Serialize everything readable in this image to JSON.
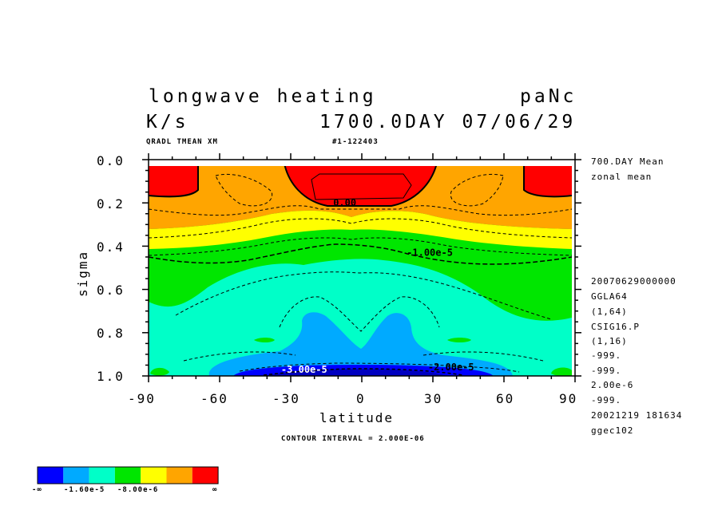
{
  "header": {
    "title": "longwave heating",
    "run": "paNc",
    "units": "K/s",
    "time": "1700.0DAY 07/06/29",
    "var": "QRADL TMEAN XM",
    "id": "#1-122403"
  },
  "side_info": {
    "line1": "700.DAY Mean",
    "line2": "zonal mean",
    "meta": [
      "20070629000000",
      "GGLA64",
      "(1,64)",
      "CSIG16.P",
      "(1,16)",
      "-999.",
      "-999.",
      "2.00e-6",
      "-999.",
      "20021219 181634",
      "ggec102"
    ]
  },
  "footer": {
    "interval": "CONTOUR INTERVAL = 2.000E-06"
  },
  "chart_data": {
    "type": "heatmap",
    "title": "longwave heating",
    "xlabel": "latitude",
    "ylabel": "sigma",
    "xlim": [
      -90,
      90
    ],
    "ylim": [
      1.0,
      0.0
    ],
    "x_ticks": [
      "-90",
      "-60",
      "-30",
      "0",
      "30",
      "60",
      "90"
    ],
    "y_ticks": [
      "0.0",
      "0.2",
      "0.4",
      "0.6",
      "0.8",
      "1.0"
    ],
    "contour_labels": [
      {
        "text": "0.00",
        "lat": -6,
        "sigma": 0.2
      },
      {
        "text": "-1.00e-5",
        "lat": 25,
        "sigma": 0.43
      },
      {
        "text": "-2.00e-5",
        "lat": 34,
        "sigma": 0.96
      },
      {
        "text": "-3.00e-5",
        "lat": -28,
        "sigma": 0.97
      }
    ],
    "colorbar": {
      "colors": [
        "#0000ff",
        "#00aaff",
        "#00ffc8",
        "#00e600",
        "#ffff00",
        "#ffa500",
        "#ff0000"
      ],
      "labels": [
        "-∞",
        "-1.60e-5",
        "-8.00e-6",
        "∞"
      ],
      "interval": 2e-06
    }
  }
}
